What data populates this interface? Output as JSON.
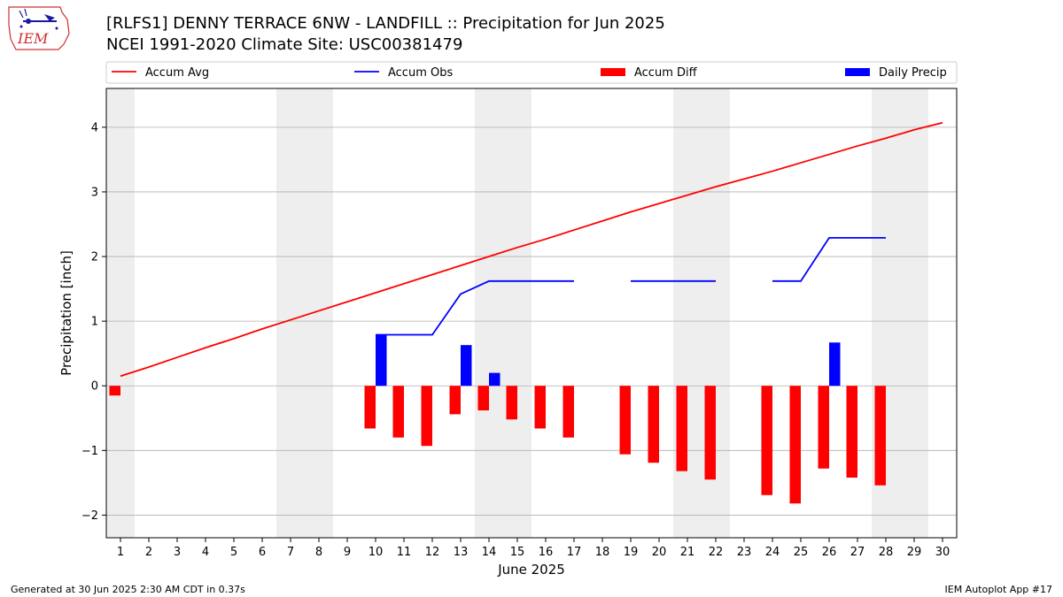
{
  "header": {
    "title_line1": "[RLFS1] DENNY TERRACE 6NW - LANDFILL :: Precipitation for Jun 2025",
    "title_line2": "NCEI 1991-2020 Climate Site: USC00381479",
    "logo_text": "IEM"
  },
  "footer": {
    "generated": "Generated at 30 Jun 2025 2:30 AM CDT in 0.37s",
    "app": "IEM Autoplot App #17"
  },
  "colors": {
    "accum_avg": "#ff0000",
    "accum_obs": "#0000ff",
    "accum_diff": "#ff0000",
    "daily_precip": "#0000ff",
    "weekend_shade": "#eeeeee",
    "grid": "#b0b0b0"
  },
  "chart_data": {
    "type": "bar",
    "xlabel": "June 2025",
    "ylabel": "Precipitation [inch]",
    "ylim": [
      -2.35,
      4.6
    ],
    "yticks": [
      -2,
      -1,
      0,
      1,
      2,
      3,
      4
    ],
    "ytick_labels": [
      "−2",
      "−1",
      "0",
      "1",
      "2",
      "3",
      "4"
    ],
    "x": [
      1,
      2,
      3,
      4,
      5,
      6,
      7,
      8,
      9,
      10,
      11,
      12,
      13,
      14,
      15,
      16,
      17,
      18,
      19,
      20,
      21,
      22,
      23,
      24,
      25,
      26,
      27,
      28,
      29,
      30
    ],
    "grid": "horizontal",
    "legend_position": "top",
    "weekend_days": [
      1,
      7,
      8,
      14,
      15,
      21,
      22,
      28,
      29
    ],
    "series": [
      {
        "name": "Accum Avg",
        "kind": "line",
        "values": [
          0.15,
          0.29,
          0.44,
          0.59,
          0.73,
          0.88,
          1.02,
          1.16,
          1.3,
          1.44,
          1.58,
          1.72,
          1.86,
          2.0,
          2.14,
          2.27,
          2.41,
          2.55,
          2.69,
          2.82,
          2.95,
          3.08,
          3.2,
          3.32,
          3.45,
          3.58,
          3.71,
          3.83,
          3.96,
          4.07
        ]
      },
      {
        "name": "Accum Obs",
        "kind": "line",
        "values": [
          null,
          null,
          null,
          null,
          null,
          null,
          null,
          null,
          null,
          0.79,
          0.79,
          0.79,
          1.42,
          1.62,
          1.62,
          1.62,
          1.62,
          null,
          1.62,
          1.62,
          1.62,
          1.62,
          null,
          1.62,
          1.62,
          2.29,
          2.29,
          2.29,
          null,
          null
        ]
      },
      {
        "name": "Accum Diff",
        "kind": "bar",
        "values": [
          -0.15,
          null,
          null,
          null,
          null,
          null,
          null,
          null,
          null,
          -0.66,
          -0.8,
          -0.93,
          -0.44,
          -0.38,
          -0.52,
          -0.66,
          -0.8,
          null,
          -1.06,
          -1.19,
          -1.32,
          -1.45,
          null,
          -1.69,
          -1.82,
          -1.28,
          -1.42,
          -1.54,
          null,
          null
        ]
      },
      {
        "name": "Daily Precip",
        "kind": "bar",
        "values": [
          null,
          null,
          null,
          null,
          null,
          null,
          null,
          null,
          null,
          0.79,
          null,
          null,
          0.63,
          0.2,
          null,
          null,
          null,
          null,
          null,
          null,
          null,
          null,
          null,
          null,
          null,
          0.67,
          null,
          null,
          null,
          null
        ]
      }
    ]
  }
}
